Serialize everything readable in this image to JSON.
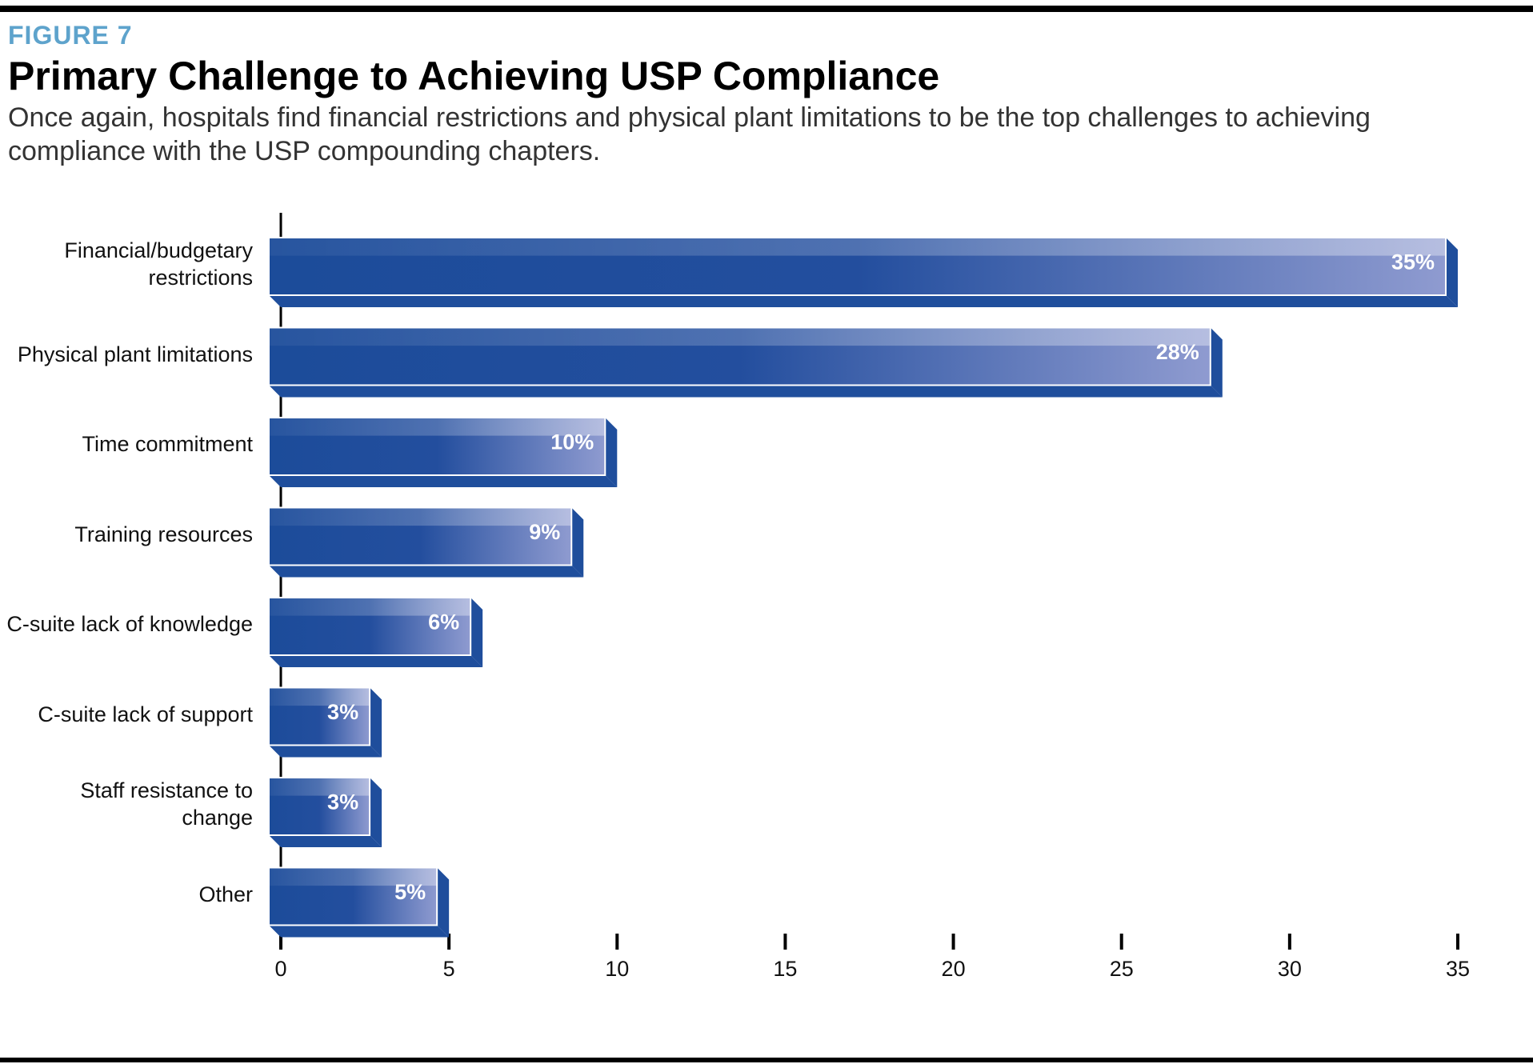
{
  "chart_data": {
    "type": "bar",
    "orientation": "horizontal",
    "label": "FIGURE 7",
    "title": "Primary Challenge to Achieving USP Compliance",
    "subtitle": "Once again, hospitals find financial restrictions and physical plant limitations to be the top challenges to achieving compliance with the USP compounding chapters.",
    "categories": [
      "Financial/budgetary restrictions",
      "Physical plant limitations",
      "Time commitment",
      "Training resources",
      "C-suite lack of knowledge",
      "C-suite lack of support",
      "Staff resistance to change",
      "Other"
    ],
    "values": [
      35,
      28,
      10,
      9,
      6,
      3,
      3,
      5
    ],
    "value_labels": [
      "35%",
      "28%",
      "10%",
      "9%",
      "6%",
      "3%",
      "3%",
      "5%"
    ],
    "color": "#1f4e9c",
    "xlim": [
      0,
      35
    ],
    "xticks": [
      0,
      5,
      10,
      15,
      20,
      25,
      30,
      35
    ]
  }
}
